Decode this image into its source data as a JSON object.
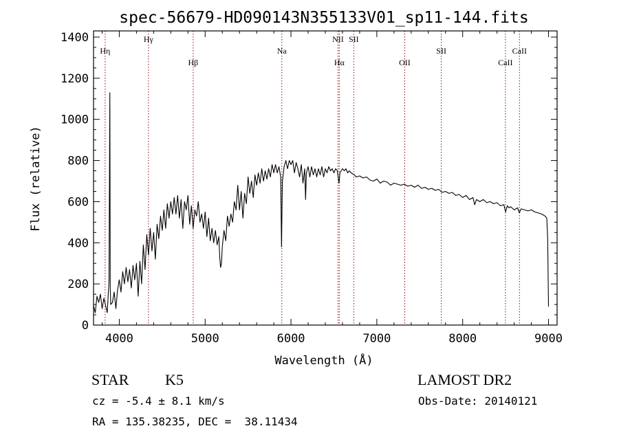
{
  "chart_data": {
    "type": "line",
    "title": "spec-56679-HD090143N355133V01_sp11-144.fits",
    "xlabel": "Wavelength (Å)",
    "ylabel": "Flux (relative)",
    "xlim": [
      3700,
      9100
    ],
    "ylim": [
      0,
      1430
    ],
    "x_ticks": [
      4000,
      5000,
      6000,
      7000,
      8000,
      9000
    ],
    "y_ticks": [
      0,
      200,
      400,
      600,
      800,
      1000,
      1200,
      1400
    ],
    "grid": false,
    "lines": [
      {
        "name": "Hη",
        "wavelength": 3835,
        "row": "top"
      },
      {
        "name": "Hγ",
        "wavelength": 4340,
        "row": "high"
      },
      {
        "name": "Hβ",
        "wavelength": 4861,
        "row": "low"
      },
      {
        "name": "Na",
        "wavelength": 5893,
        "row": "top"
      },
      {
        "name": "NII",
        "wavelength": 6548,
        "row": "high"
      },
      {
        "name": "Hα",
        "wavelength": 6563,
        "row": "low"
      },
      {
        "name": "SII",
        "wavelength": 6731,
        "row": "high"
      },
      {
        "name": "OII",
        "wavelength": 7325,
        "row": "low"
      },
      {
        "name": "SII",
        "wavelength": 7751,
        "row": "top"
      },
      {
        "name": "CaII",
        "wavelength": 8498,
        "row": "low"
      },
      {
        "name": "CaII",
        "wavelength": 8662,
        "row": "top"
      }
    ],
    "series": [
      {
        "points": [
          [
            3700,
            95
          ],
          [
            3720,
            60
          ],
          [
            3740,
            140
          ],
          [
            3760,
            110
          ],
          [
            3780,
            150
          ],
          [
            3800,
            80
          ],
          [
            3820,
            130
          ],
          [
            3840,
            95
          ],
          [
            3860,
            60
          ],
          [
            3870,
            140
          ],
          [
            3880,
            210
          ],
          [
            3890,
            1130
          ],
          [
            3895,
            180
          ],
          [
            3900,
            100
          ],
          [
            3920,
            110
          ],
          [
            3940,
            160
          ],
          [
            3960,
            80
          ],
          [
            3980,
            170
          ],
          [
            4000,
            220
          ],
          [
            4020,
            160
          ],
          [
            4040,
            260
          ],
          [
            4060,
            200
          ],
          [
            4080,
            280
          ],
          [
            4100,
            210
          ],
          [
            4120,
            270
          ],
          [
            4140,
            180
          ],
          [
            4160,
            290
          ],
          [
            4180,
            220
          ],
          [
            4200,
            300
          ],
          [
            4220,
            140
          ],
          [
            4240,
            310
          ],
          [
            4260,
            200
          ],
          [
            4280,
            390
          ],
          [
            4300,
            270
          ],
          [
            4320,
            440
          ],
          [
            4340,
            340
          ],
          [
            4360,
            470
          ],
          [
            4380,
            360
          ],
          [
            4400,
            450
          ],
          [
            4420,
            320
          ],
          [
            4440,
            490
          ],
          [
            4460,
            420
          ],
          [
            4480,
            530
          ],
          [
            4500,
            460
          ],
          [
            4520,
            560
          ],
          [
            4540,
            470
          ],
          [
            4560,
            590
          ],
          [
            4580,
            520
          ],
          [
            4600,
            600
          ],
          [
            4620,
            540
          ],
          [
            4640,
            620
          ],
          [
            4660,
            540
          ],
          [
            4680,
            630
          ],
          [
            4700,
            520
          ],
          [
            4720,
            610
          ],
          [
            4740,
            470
          ],
          [
            4760,
            600
          ],
          [
            4780,
            560
          ],
          [
            4800,
            630
          ],
          [
            4820,
            490
          ],
          [
            4840,
            580
          ],
          [
            4860,
            470
          ],
          [
            4880,
            560
          ],
          [
            4900,
            530
          ],
          [
            4920,
            600
          ],
          [
            4940,
            500
          ],
          [
            4960,
            540
          ],
          [
            4980,
            470
          ],
          [
            5000,
            550
          ],
          [
            5020,
            430
          ],
          [
            5040,
            520
          ],
          [
            5060,
            410
          ],
          [
            5080,
            470
          ],
          [
            5100,
            400
          ],
          [
            5120,
            460
          ],
          [
            5140,
            390
          ],
          [
            5160,
            430
          ],
          [
            5170,
            330
          ],
          [
            5180,
            280
          ],
          [
            5190,
            300
          ],
          [
            5200,
            380
          ],
          [
            5220,
            460
          ],
          [
            5240,
            410
          ],
          [
            5260,
            530
          ],
          [
            5280,
            480
          ],
          [
            5300,
            540
          ],
          [
            5320,
            500
          ],
          [
            5340,
            600
          ],
          [
            5360,
            560
          ],
          [
            5380,
            680
          ],
          [
            5400,
            560
          ],
          [
            5420,
            650
          ],
          [
            5440,
            520
          ],
          [
            5460,
            640
          ],
          [
            5480,
            590
          ],
          [
            5500,
            720
          ],
          [
            5520,
            640
          ],
          [
            5540,
            700
          ],
          [
            5560,
            620
          ],
          [
            5580,
            730
          ],
          [
            5600,
            680
          ],
          [
            5620,
            740
          ],
          [
            5640,
            690
          ],
          [
            5660,
            760
          ],
          [
            5680,
            700
          ],
          [
            5700,
            750
          ],
          [
            5720,
            710
          ],
          [
            5740,
            760
          ],
          [
            5760,
            720
          ],
          [
            5780,
            780
          ],
          [
            5800,
            740
          ],
          [
            5820,
            780
          ],
          [
            5840,
            740
          ],
          [
            5860,
            770
          ],
          [
            5880,
            720
          ],
          [
            5890,
            380
          ],
          [
            5900,
            700
          ],
          [
            5920,
            770
          ],
          [
            5940,
            800
          ],
          [
            5960,
            760
          ],
          [
            5980,
            800
          ],
          [
            6000,
            780
          ],
          [
            6020,
            800
          ],
          [
            6040,
            740
          ],
          [
            6060,
            790
          ],
          [
            6080,
            760
          ],
          [
            6100,
            720
          ],
          [
            6120,
            780
          ],
          [
            6140,
            690
          ],
          [
            6160,
            760
          ],
          [
            6170,
            610
          ],
          [
            6180,
            740
          ],
          [
            6200,
            770
          ],
          [
            6220,
            720
          ],
          [
            6240,
            770
          ],
          [
            6260,
            730
          ],
          [
            6280,
            760
          ],
          [
            6300,
            720
          ],
          [
            6320,
            760
          ],
          [
            6340,
            730
          ],
          [
            6360,
            770
          ],
          [
            6380,
            720
          ],
          [
            6400,
            760
          ],
          [
            6420,
            740
          ],
          [
            6440,
            770
          ],
          [
            6460,
            750
          ],
          [
            6480,
            760
          ],
          [
            6500,
            740
          ],
          [
            6520,
            760
          ],
          [
            6540,
            750
          ],
          [
            6560,
            690
          ],
          [
            6570,
            740
          ],
          [
            6600,
            760
          ],
          [
            6620,
            750
          ],
          [
            6640,
            760
          ],
          [
            6660,
            740
          ],
          [
            6680,
            750
          ],
          [
            6700,
            740
          ],
          [
            6720,
            735
          ],
          [
            6740,
            730
          ],
          [
            6760,
            720
          ],
          [
            6800,
            725
          ],
          [
            6840,
            715
          ],
          [
            6880,
            720
          ],
          [
            6920,
            705
          ],
          [
            6960,
            700
          ],
          [
            7000,
            710
          ],
          [
            7040,
            690
          ],
          [
            7080,
            700
          ],
          [
            7120,
            695
          ],
          [
            7160,
            680
          ],
          [
            7200,
            690
          ],
          [
            7240,
            685
          ],
          [
            7280,
            680
          ],
          [
            7320,
            685
          ],
          [
            7360,
            675
          ],
          [
            7400,
            680
          ],
          [
            7440,
            670
          ],
          [
            7480,
            680
          ],
          [
            7520,
            665
          ],
          [
            7560,
            670
          ],
          [
            7600,
            660
          ],
          [
            7640,
            665
          ],
          [
            7680,
            655
          ],
          [
            7720,
            660
          ],
          [
            7760,
            645
          ],
          [
            7800,
            650
          ],
          [
            7840,
            640
          ],
          [
            7880,
            645
          ],
          [
            7920,
            630
          ],
          [
            7960,
            635
          ],
          [
            8000,
            620
          ],
          [
            8040,
            630
          ],
          [
            8080,
            610
          ],
          [
            8120,
            620
          ],
          [
            8140,
            585
          ],
          [
            8160,
            610
          ],
          [
            8200,
            600
          ],
          [
            8240,
            610
          ],
          [
            8280,
            595
          ],
          [
            8320,
            600
          ],
          [
            8360,
            590
          ],
          [
            8400,
            595
          ],
          [
            8440,
            580
          ],
          [
            8480,
            585
          ],
          [
            8500,
            550
          ],
          [
            8520,
            580
          ],
          [
            8540,
            570
          ],
          [
            8560,
            575
          ],
          [
            8600,
            560
          ],
          [
            8640,
            570
          ],
          [
            8660,
            545
          ],
          [
            8680,
            565
          ],
          [
            8720,
            560
          ],
          [
            8760,
            555
          ],
          [
            8800,
            560
          ],
          [
            8840,
            550
          ],
          [
            8880,
            545
          ],
          [
            8920,
            540
          ],
          [
            8960,
            530
          ],
          [
            8980,
            520
          ],
          [
            8990,
            420
          ],
          [
            9000,
            90
          ]
        ]
      }
    ]
  },
  "info": {
    "object_class": "STAR",
    "subclass": "K5",
    "survey": "LAMOST DR2",
    "cz": "cz = -5.4 ± 8.1 km/s",
    "obs_date": "Obs-Date: 20140121",
    "coords": "RA = 135.38235, DEC =  38.11434"
  },
  "colors": {
    "spectrum": "#000000",
    "line_marker": "#8b0000",
    "axes": "#000000"
  }
}
